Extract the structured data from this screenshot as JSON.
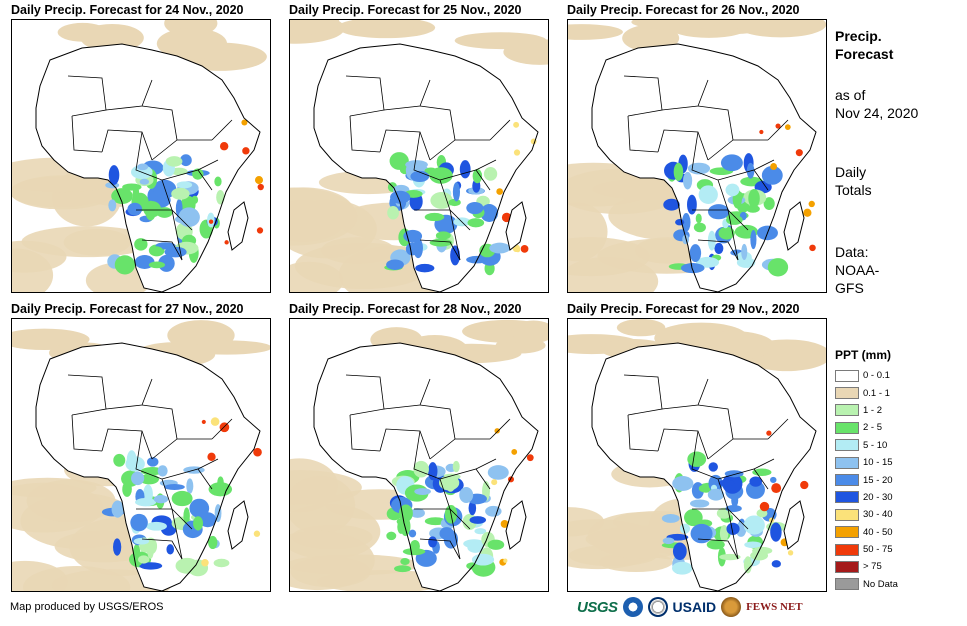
{
  "panels": [
    {
      "title": "Daily Precip. Forecast for 24 Nov., 2020"
    },
    {
      "title": "Daily Precip. Forecast for 25 Nov., 2020"
    },
    {
      "title": "Daily Precip. Forecast for 26 Nov., 2020"
    },
    {
      "title": "Daily Precip. Forecast for 27 Nov., 2020"
    },
    {
      "title": "Daily Precip. Forecast for 28 Nov., 2020"
    },
    {
      "title": "Daily Precip. Forecast for 29 Nov., 2020"
    }
  ],
  "side": {
    "title_line1": "Precip.",
    "title_line2": "Forecast",
    "asof_line1": "as of",
    "asof_line2": "Nov 24, 2020",
    "totals_line1": "Daily",
    "totals_line2": "Totals",
    "data_line1": "Data:",
    "data_line2": "NOAA-",
    "data_line3": "GFS"
  },
  "legend": {
    "title": "PPT (mm)",
    "items": [
      {
        "label": "0 - 0.1",
        "color": "#ffffff"
      },
      {
        "label": "0.1 - 1",
        "color": "#e9d7b5"
      },
      {
        "label": "1 - 2",
        "color": "#b9f2b0"
      },
      {
        "label": "2 - 5",
        "color": "#68e36a"
      },
      {
        "label": "5 - 10",
        "color": "#b3ecf4"
      },
      {
        "label": "10 - 15",
        "color": "#8ec2f0"
      },
      {
        "label": "15 - 20",
        "color": "#4b8be8"
      },
      {
        "label": "20 - 30",
        "color": "#1f55e0"
      },
      {
        "label": "30 - 40",
        "color": "#fbe27a"
      },
      {
        "label": "40 - 50",
        "color": "#f4a100"
      },
      {
        "label": "50 - 75",
        "color": "#f03a0a"
      },
      {
        "label": "> 75",
        "color": "#a51a1a"
      },
      {
        "label": "No Data",
        "color": "#9a9a9a"
      }
    ]
  },
  "credit": "Map produced by USGS/EROS",
  "logos": {
    "usgs": "USGS",
    "usaid": "USAID",
    "fews": "FEWS NET"
  }
}
